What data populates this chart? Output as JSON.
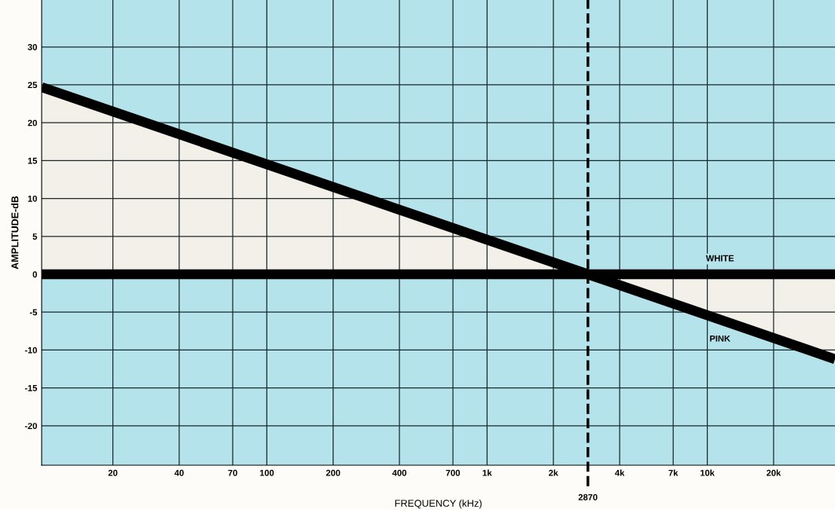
{
  "chart_data": {
    "type": "line",
    "xlabel": "FREQUENCY (kHz)",
    "ylabel": "AMPLITUDE-dB",
    "log": "x",
    "xlim": [
      9.5,
      38000
    ],
    "ylim": [
      -25.2,
      36.2
    ],
    "xticks": [
      20,
      40,
      70,
      100,
      200,
      400,
      700,
      {
        "value": 1000,
        "label": "1k"
      },
      {
        "value": 2000,
        "label": "2k"
      },
      {
        "value": 4000,
        "label": "4k"
      },
      {
        "value": 7000,
        "label": "7k"
      },
      {
        "value": 10000,
        "label": "10k"
      },
      {
        "value": 20000,
        "label": "20k"
      }
    ],
    "yticks": [
      -20,
      -15,
      -10,
      -5,
      0,
      5,
      10,
      15,
      20,
      30,
      25
    ],
    "grid": true,
    "line_style": "solid",
    "marker": "none",
    "series": [
      {
        "name": "WHITE",
        "color": "#000000",
        "x": [
          9.5,
          38000
        ],
        "values": [
          0,
          0
        ]
      },
      {
        "name": "PINK",
        "color": "#000000",
        "x": [
          9.5,
          2870,
          38000
        ],
        "values": [
          24.7,
          0,
          -11.2
        ]
      }
    ],
    "ref_lines": [
      {
        "axis": "x",
        "value": 2870,
        "label": "2870",
        "color": "#000000",
        "line_style": "dashed"
      }
    ]
  }
}
